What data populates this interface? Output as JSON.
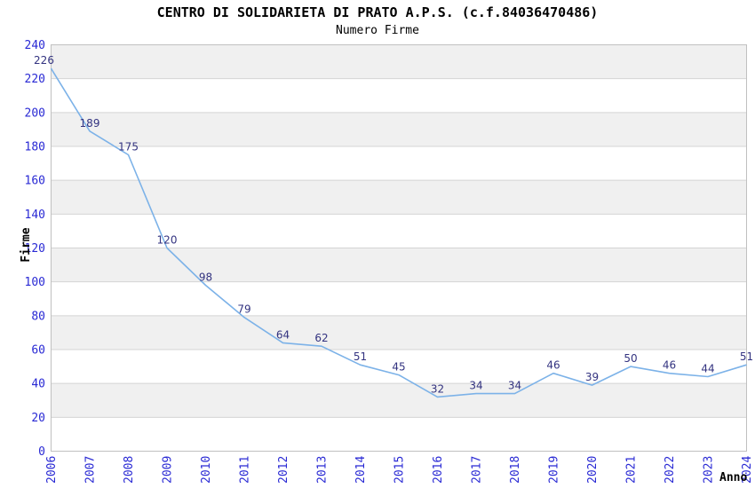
{
  "chart_data": {
    "type": "line",
    "title": "CENTRO DI SOLIDARIETA DI PRATO A.P.S. (c.f.84036470486)",
    "subtitle": "Numero Firme",
    "xlabel": "Anno",
    "ylabel": "Firme",
    "categories": [
      "2006",
      "2007",
      "2008",
      "2009",
      "2010",
      "2011",
      "2012",
      "2013",
      "2014",
      "2015",
      "2016",
      "2017",
      "2018",
      "2019",
      "2020",
      "2021",
      "2022",
      "2023",
      "2024"
    ],
    "values": [
      226,
      189,
      175,
      120,
      98,
      79,
      64,
      62,
      51,
      45,
      32,
      34,
      34,
      46,
      39,
      50,
      46,
      44,
      51
    ],
    "ylim": [
      0,
      240
    ],
    "ytick_step": 20,
    "grid": true,
    "legend": false,
    "band_fill": "alternating-horizontal",
    "colors": {
      "line": "#7cb2e8",
      "data_label": "#333380",
      "tick_label": "#2929d4",
      "band": "#f0f0f0",
      "gridline": "#d4d4d4",
      "plot_border": "#c0c0c0",
      "title_text": "#000000",
      "background": "#ffffff"
    }
  }
}
